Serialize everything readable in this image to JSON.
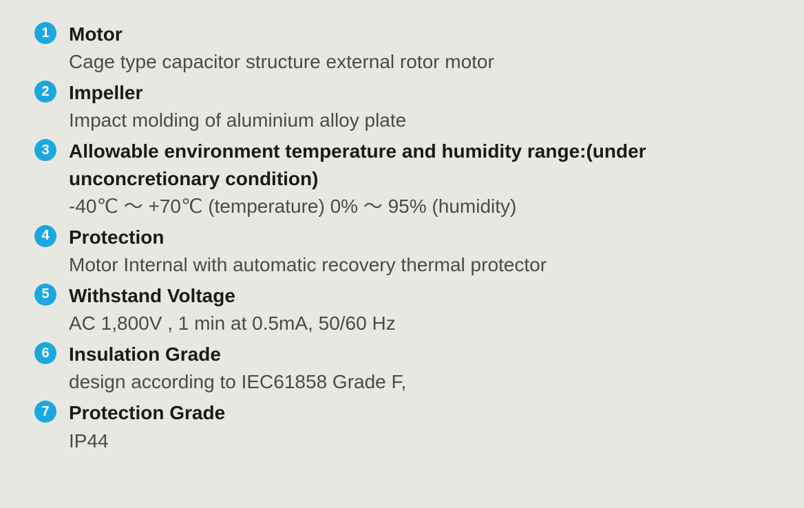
{
  "specs": [
    {
      "num": "1",
      "title": "Motor",
      "desc": "Cage type capacitor structure external rotor motor"
    },
    {
      "num": "2",
      "title": "Impeller",
      "desc": "Impact molding of aluminium alloy plate"
    },
    {
      "num": "3",
      "title": "Allowable environment temperature and humidity range:(under unconcretionary condition)",
      "desc": " -40℃ ～ +70℃ (temperature)  0% ～ 95% (humidity)"
    },
    {
      "num": "4",
      "title": "Protection",
      "desc": "Motor Internal with automatic recovery thermal protector"
    },
    {
      "num": "5",
      "title": "Withstand Voltage",
      "desc": "AC 1,800V , 1 min at 0.5mA, 50/60 Hz"
    },
    {
      "num": "6",
      "title": "Insulation Grade",
      "desc": "design according to IEC61858 Grade  F,"
    },
    {
      "num": "7",
      "title": "Protection Grade",
      "desc": "IP44"
    }
  ],
  "styling": {
    "background_color": "#e8e8e3",
    "marker_bg_color": "#1ba8e0",
    "marker_text_color": "#ffffff",
    "title_color": "#1a1a1a",
    "desc_color": "#4a4a4a",
    "title_fontsize": 28,
    "desc_fontsize": 28,
    "marker_size": 32,
    "marker_fontsize": 20
  }
}
